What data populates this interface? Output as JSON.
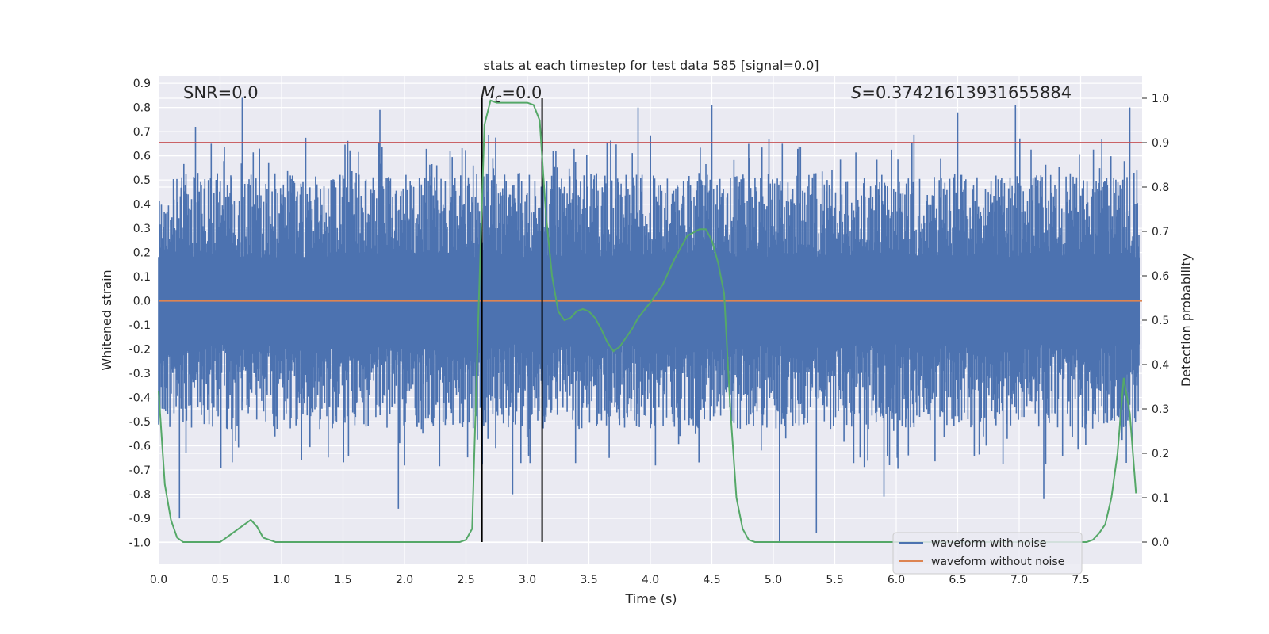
{
  "chart_data": {
    "type": "line",
    "title": "stats at each timestep for test data 585 [signal=0.0]",
    "xlabel": "Time (s)",
    "ylabel": "Whitened strain",
    "ylabel_right": "Detection probability",
    "xlim": [
      0.0,
      8.0
    ],
    "ylim": [
      -1.09,
      0.93
    ],
    "ylim_right": [
      -0.05,
      1.05
    ],
    "x_ticks": [
      "0.0",
      "0.5",
      "1.0",
      "1.5",
      "2.0",
      "2.5",
      "3.0",
      "3.5",
      "4.0",
      "4.5",
      "5.0",
      "5.5",
      "6.0",
      "6.5",
      "7.0",
      "7.5"
    ],
    "y_ticks": [
      "0.9",
      "0.8",
      "0.7",
      "0.6",
      "0.5",
      "0.4",
      "0.3",
      "0.2",
      "0.1",
      "0.0",
      "-0.1",
      "-0.2",
      "-0.3",
      "-0.4",
      "-0.5",
      "-0.6",
      "-0.7",
      "-0.8",
      "-0.9",
      "-1.0"
    ],
    "y_ticks_right": [
      "1.0",
      "0.9",
      "0.8",
      "0.7",
      "0.6",
      "0.5",
      "0.4",
      "0.3",
      "0.2",
      "0.1",
      "0.0"
    ],
    "annotations": {
      "snr": "SNR=0.0",
      "mc": "M_c=0.0",
      "mc_symbol": "M",
      "mc_sub": "c",
      "mc_rest": "=0.0",
      "s_symbol": "S",
      "s_rest": "=0.37421613931655884"
    },
    "threshold_right": 0.9,
    "vertical_lines_x": [
      2.63,
      3.12
    ],
    "legend": {
      "position": "lower-right",
      "entries": [
        "waveform with noise",
        "waveform without noise"
      ]
    },
    "colors": {
      "noise": "#4c72b0",
      "clean": "#dd8452",
      "prob": "#55a868",
      "threshold": "#c44e52",
      "vlines": "#000000",
      "background": "#eaeaf2",
      "grid": "#ffffff"
    },
    "series": [
      {
        "name": "waveform with noise",
        "kind": "noise_band",
        "upper_envelope": 0.45,
        "lower_envelope": -0.45,
        "peaks": [
          {
            "x": 0.17,
            "y": -0.9
          },
          {
            "x": 0.68,
            "y": 0.84
          },
          {
            "x": 0.3,
            "y": 0.72
          },
          {
            "x": 1.8,
            "y": 0.79
          },
          {
            "x": 1.95,
            "y": -0.86
          },
          {
            "x": 2.88,
            "y": -0.8
          },
          {
            "x": 4.5,
            "y": 0.81
          },
          {
            "x": 5.05,
            "y": -1.0
          },
          {
            "x": 5.35,
            "y": -0.96
          },
          {
            "x": 6.5,
            "y": 0.78
          },
          {
            "x": 6.97,
            "y": 0.81
          },
          {
            "x": 7.9,
            "y": 0.8
          },
          {
            "x": 5.9,
            "y": -0.81
          },
          {
            "x": 7.2,
            "y": -0.82
          },
          {
            "x": 3.9,
            "y": 0.8
          }
        ]
      },
      {
        "name": "waveform without noise",
        "kind": "line",
        "x": [
          0.0,
          8.0
        ],
        "y": [
          0.0,
          0.0
        ]
      },
      {
        "name": "detection probability",
        "axis": "right",
        "kind": "line",
        "x": [
          0.0,
          0.05,
          0.1,
          0.15,
          0.2,
          0.3,
          0.4,
          0.45,
          0.5,
          0.55,
          0.6,
          0.65,
          0.7,
          0.75,
          0.8,
          0.85,
          0.9,
          0.95,
          1.0,
          1.5,
          2.0,
          2.45,
          2.5,
          2.55,
          2.6,
          2.65,
          2.7,
          2.75,
          2.8,
          2.9,
          3.0,
          3.05,
          3.1,
          3.15,
          3.2,
          3.25,
          3.3,
          3.35,
          3.4,
          3.45,
          3.5,
          3.55,
          3.6,
          3.65,
          3.7,
          3.75,
          3.8,
          3.85,
          3.9,
          4.0,
          4.1,
          4.2,
          4.3,
          4.4,
          4.45,
          4.5,
          4.55,
          4.6,
          4.65,
          4.7,
          4.75,
          4.8,
          4.85,
          4.9,
          5.0,
          5.5,
          5.6,
          6.0,
          6.5,
          7.0,
          7.4,
          7.55,
          7.6,
          7.65,
          7.7,
          7.75,
          7.8,
          7.85,
          7.9,
          7.95
        ],
        "y": [
          0.34,
          0.13,
          0.05,
          0.01,
          0.0,
          0.0,
          0.0,
          0.0,
          0.0,
          0.01,
          0.02,
          0.03,
          0.04,
          0.05,
          0.035,
          0.01,
          0.005,
          0.0,
          0.0,
          0.0,
          0.0,
          0.0,
          0.005,
          0.03,
          0.5,
          0.94,
          0.995,
          0.99,
          0.99,
          0.99,
          0.99,
          0.985,
          0.95,
          0.74,
          0.6,
          0.52,
          0.5,
          0.505,
          0.52,
          0.525,
          0.52,
          0.505,
          0.48,
          0.45,
          0.43,
          0.44,
          0.46,
          0.48,
          0.505,
          0.54,
          0.58,
          0.64,
          0.69,
          0.705,
          0.705,
          0.68,
          0.63,
          0.56,
          0.3,
          0.1,
          0.03,
          0.005,
          0.0,
          0.0,
          0.0,
          0.0,
          0.0,
          0.0,
          0.0,
          0.0,
          0.0,
          0.0,
          0.005,
          0.02,
          0.04,
          0.1,
          0.2,
          0.37,
          0.29,
          0.11
        ]
      }
    ]
  }
}
